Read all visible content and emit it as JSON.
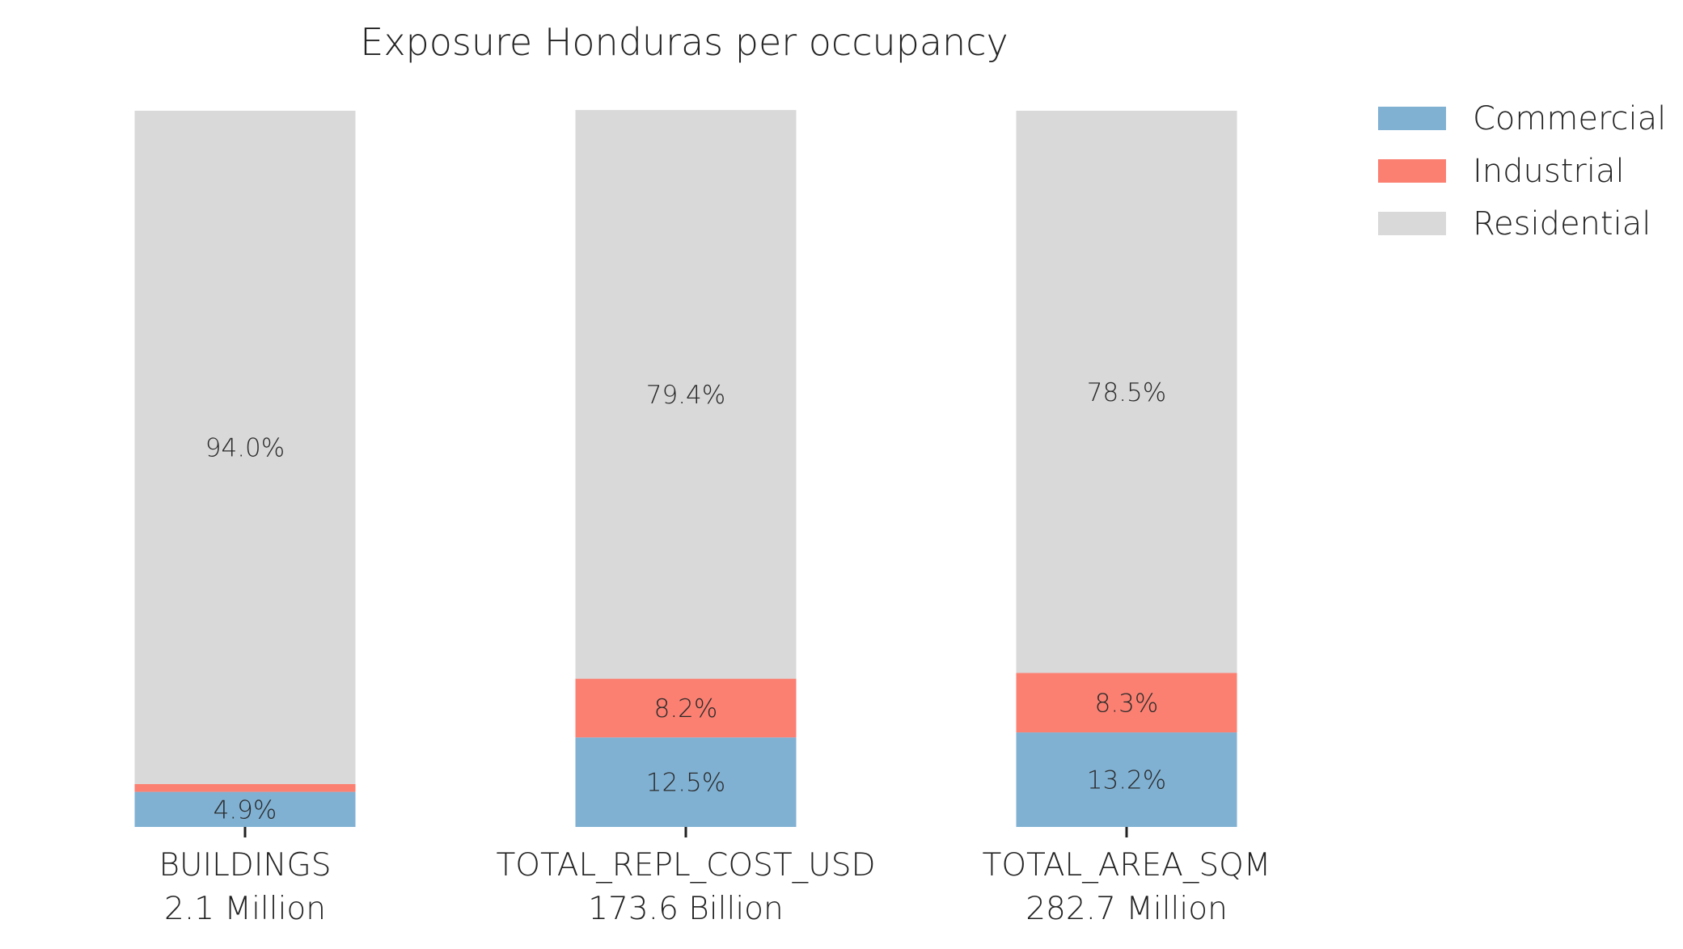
{
  "chart_data": {
    "type": "bar",
    "stacked": true,
    "normalized": true,
    "title": "Exposure Honduras per occupancy",
    "categories": [
      "BUILDINGS",
      "TOTAL_REPL_COST_USD",
      "TOTAL_AREA_SQM"
    ],
    "category_totals": [
      "2.1 Million",
      "173.6 Billion",
      "282.7 Million"
    ],
    "series": [
      {
        "name": "Commercial",
        "color": "#80b1d3",
        "values": [
          4.9,
          12.5,
          13.2
        ],
        "labels": [
          "4.9%",
          "12.5%",
          "13.2%"
        ]
      },
      {
        "name": "Industrial",
        "color": "#fb8072",
        "values": [
          1.1,
          8.2,
          8.3
        ],
        "labels": [
          "",
          "8.2%",
          "8.3%"
        ]
      },
      {
        "name": "Residential",
        "color": "#d9d9d9",
        "values": [
          94.0,
          79.4,
          78.5
        ],
        "labels": [
          "94.0%",
          "79.4%",
          "78.5%"
        ]
      }
    ],
    "ylim": [
      0,
      100
    ],
    "grid": false,
    "legend_position": "top-right"
  }
}
